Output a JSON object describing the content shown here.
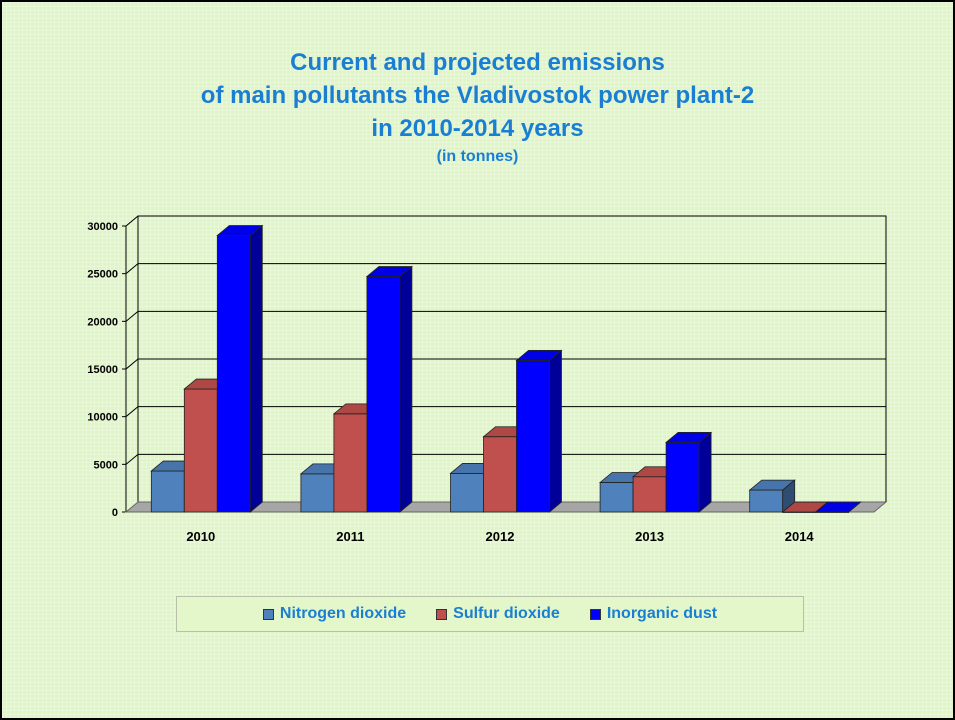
{
  "title": {
    "lines": [
      "Current and projected emissions",
      "of main pollutants the Vladivostok power plant-2",
      "in 2010-2014 years"
    ],
    "subtitle": "(in tonnes)"
  },
  "colors": {
    "title": "#1a7fd2",
    "background": "#dff5c5"
  },
  "chart_data": {
    "type": "bar",
    "style": "3d-clustered",
    "categories": [
      "2010",
      "2011",
      "2012",
      "2013",
      "2014"
    ],
    "series": [
      {
        "name": "Nitrogen dioxide",
        "color": "#4f81bd",
        "values": [
          4300,
          4000,
          4050,
          3100,
          2300
        ]
      },
      {
        "name": "Sulfur dioxide",
        "color": "#c0504d",
        "values": [
          12900,
          10300,
          7900,
          3700,
          0
        ]
      },
      {
        "name": "Inorganic dust",
        "color": "#0000ff",
        "values": [
          29000,
          24700,
          15900,
          7300,
          0
        ]
      }
    ],
    "yticks": [
      "0",
      "5000",
      "10000",
      "15000",
      "20000",
      "25000",
      "30000"
    ],
    "ylim": [
      0,
      30000
    ],
    "grid": true,
    "legend": "bottom"
  }
}
